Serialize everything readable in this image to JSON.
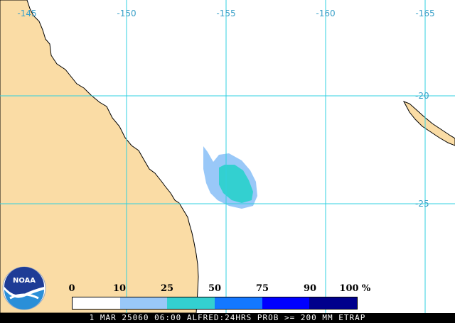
{
  "map": {
    "lon_labels": [
      "-145",
      "-150",
      "-155",
      "-160",
      "-165"
    ],
    "lat_labels": [
      "-20",
      "-25"
    ],
    "colors": {
      "land": "#fadca5",
      "ocean": "#ffffff",
      "grid": "#30d0e0",
      "coast": "#000000"
    }
  },
  "legend": {
    "labels": [
      "0",
      "10",
      "25",
      "50",
      "75",
      "90",
      "100",
      "%"
    ],
    "colors": [
      "#ffffff",
      "#99c8f8",
      "#33d0d0",
      "#1478ff",
      "#0000ff",
      "#00008c"
    ]
  },
  "logo": {
    "text": "NOAA",
    "icon": "noaa-logo"
  },
  "caption": "1 MAR 25060 06:00 ALFRED:24HRS PROB >= 200 MM ETRAP"
}
